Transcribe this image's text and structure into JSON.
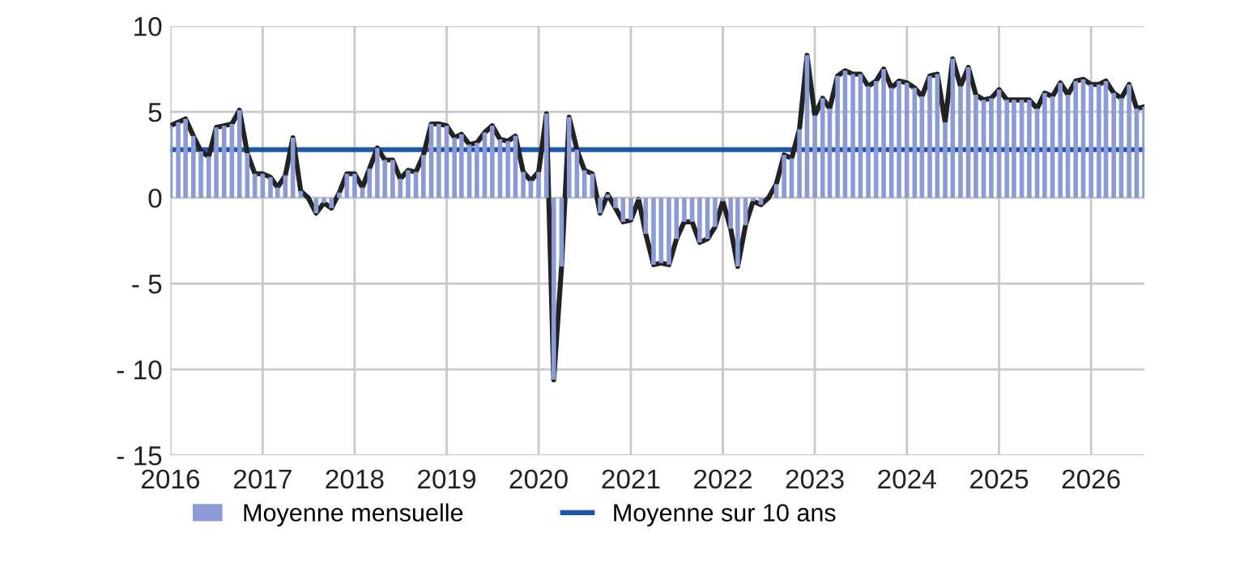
{
  "chart_data": {
    "type": "bar",
    "x": [
      "2016-01",
      "2016-02",
      "2016-03",
      "2016-04",
      "2016-05",
      "2016-06",
      "2016-07",
      "2016-08",
      "2016-09",
      "2016-10",
      "2016-11",
      "2016-12",
      "2017-01",
      "2017-02",
      "2017-03",
      "2017-04",
      "2017-05",
      "2017-06",
      "2017-07",
      "2017-08",
      "2017-09",
      "2017-10",
      "2017-11",
      "2017-12",
      "2018-01",
      "2018-02",
      "2018-03",
      "2018-04",
      "2018-05",
      "2018-06",
      "2018-07",
      "2018-08",
      "2018-09",
      "2018-10",
      "2018-11",
      "2018-12",
      "2019-01",
      "2019-02",
      "2019-03",
      "2019-04",
      "2019-05",
      "2019-06",
      "2019-07",
      "2019-08",
      "2019-09",
      "2019-10",
      "2019-11",
      "2019-12",
      "2020-01",
      "2020-02",
      "2020-03",
      "2020-04",
      "2020-05",
      "2020-06",
      "2020-07",
      "2020-08",
      "2020-09",
      "2020-10",
      "2020-11",
      "2020-12",
      "2021-01",
      "2021-02",
      "2021-03",
      "2021-04",
      "2021-05",
      "2021-06",
      "2021-07",
      "2021-08",
      "2021-09",
      "2021-10",
      "2021-11",
      "2021-12",
      "2022-01",
      "2022-02",
      "2022-03",
      "2022-04",
      "2022-05",
      "2022-06",
      "2022-07",
      "2022-08",
      "2022-09",
      "2022-10",
      "2022-11",
      "2022-12",
      "2023-01",
      "2023-02",
      "2023-03",
      "2023-04",
      "2023-05",
      "2023-06",
      "2023-07",
      "2023-08",
      "2023-09",
      "2023-10",
      "2023-11",
      "2023-12",
      "2024-01",
      "2024-02",
      "2024-03",
      "2024-04",
      "2024-05",
      "2024-06",
      "2024-07",
      "2024-08",
      "2024-09",
      "2024-10",
      "2024-11",
      "2024-12",
      "2025-01",
      "2025-02",
      "2025-03",
      "2025-04",
      "2025-05",
      "2025-06",
      "2025-07",
      "2025-08",
      "2025-09",
      "2025-10",
      "2025-11",
      "2025-12",
      "2026-01",
      "2026-02",
      "2026-03",
      "2026-04",
      "2026-05",
      "2026-06",
      "2026-07",
      "2026-08"
    ],
    "series": [
      {
        "name": "Moyenne mensuelle",
        "color": "#8c9ad6",
        "values": [
          4.2,
          4.4,
          4.6,
          3.6,
          2.7,
          2.4,
          4.1,
          4.2,
          4.3,
          5.1,
          2.6,
          1.4,
          1.4,
          1.2,
          0.6,
          1.3,
          3.5,
          0.4,
          0,
          -0.9,
          -0.3,
          -0.6,
          0.3,
          1.4,
          1.4,
          0.6,
          1.7,
          2.9,
          2.2,
          2.2,
          1.1,
          1.6,
          1.5,
          2.5,
          4.3,
          4.3,
          4.2,
          3.5,
          3.7,
          3.1,
          3.2,
          3.8,
          4.2,
          3.4,
          3.3,
          3.6,
          1.5,
          1.0,
          1.5,
          4.9,
          -10.6,
          -4,
          4.7,
          2.8,
          1.6,
          1.4,
          -0.9,
          0.2,
          -0.6,
          -1.4,
          -1.3,
          -0.1,
          -2.1,
          -3.9,
          -3.8,
          -3.9,
          -2.4,
          -1.4,
          -1.4,
          -2.6,
          -2.4,
          -1.7,
          -0.2,
          -1.8,
          -4.0,
          -1.6,
          -0.2,
          -0.4,
          0,
          0.8,
          2.5,
          2.3,
          4.0,
          8.3,
          4.8,
          5.8,
          5.2,
          7.1,
          7.4,
          7.2,
          7.2,
          6.5,
          6.8,
          7.5,
          6.4,
          6.8,
          6.7,
          6.4,
          5.9,
          7.1,
          7.2,
          4.4,
          8.1,
          6.5,
          7.6,
          6.0,
          5.7,
          5.8,
          6.3,
          5.7,
          5.7,
          5.7,
          5.7,
          5.2,
          6.1,
          5.9,
          6.7,
          6.0,
          6.8,
          6.9,
          6.6,
          6.6,
          6.8,
          6.1,
          5.8,
          6.6,
          5.2,
          5.3
        ]
      },
      {
        "type": "line",
        "color": "#222222",
        "values": [
          4.2,
          4.4,
          4.6,
          3.6,
          2.7,
          2.4,
          4.1,
          4.2,
          4.3,
          5.1,
          2.6,
          1.4,
          1.4,
          1.2,
          0.6,
          1.3,
          3.5,
          0.4,
          0,
          -0.9,
          -0.3,
          -0.6,
          0.3,
          1.4,
          1.4,
          0.6,
          1.7,
          2.9,
          2.2,
          2.2,
          1.1,
          1.6,
          1.5,
          2.5,
          4.3,
          4.3,
          4.2,
          3.5,
          3.7,
          3.1,
          3.2,
          3.8,
          4.2,
          3.4,
          3.3,
          3.6,
          1.5,
          1.0,
          1.5,
          4.9,
          -10.6,
          -4,
          4.7,
          2.8,
          1.6,
          1.4,
          -0.9,
          0.2,
          -0.6,
          -1.4,
          -1.3,
          -0.1,
          -2.1,
          -3.9,
          -3.8,
          -3.9,
          -2.4,
          -1.4,
          -1.4,
          -2.6,
          -2.4,
          -1.7,
          -0.2,
          -1.8,
          -4.0,
          -1.6,
          -0.2,
          -0.4,
          0,
          0.8,
          2.5,
          2.3,
          4.0,
          8.3,
          4.8,
          5.8,
          5.2,
          7.1,
          7.4,
          7.2,
          7.2,
          6.5,
          6.8,
          7.5,
          6.4,
          6.8,
          6.7,
          6.4,
          5.9,
          7.1,
          7.2,
          4.4,
          8.1,
          6.5,
          7.6,
          6.0,
          5.7,
          5.8,
          6.3,
          5.7,
          5.7,
          5.7,
          5.7,
          5.2,
          6.1,
          5.9,
          6.7,
          6.0,
          6.8,
          6.9,
          6.6,
          6.6,
          6.8,
          6.1,
          5.8,
          6.6,
          5.2,
          5.3
        ]
      }
    ],
    "ref_lines": [
      {
        "axis": "y",
        "value": 2.8,
        "label": "Moyenne sur 10 ans",
        "color": "#1f56a8"
      }
    ],
    "xlim": [
      "2016-01",
      "2026-08"
    ],
    "xticks": [
      {
        "value": "2016-01",
        "label": "2016"
      },
      {
        "value": "2017-01",
        "label": "2017"
      },
      {
        "value": "2018-01",
        "label": "2018"
      },
      {
        "value": "2019-01",
        "label": "2019"
      },
      {
        "value": "2020-01",
        "label": "2020"
      },
      {
        "value": "2021-01",
        "label": "2021"
      },
      {
        "value": "2022-01",
        "label": "2022"
      },
      {
        "value": "2023-01",
        "label": "2023"
      },
      {
        "value": "2024-01",
        "label": "2024"
      },
      {
        "value": "2025-01",
        "label": "2025"
      },
      {
        "value": "2026-01",
        "label": "2026"
      }
    ],
    "ylim": [
      -15,
      10
    ],
    "yticks": [
      {
        "value": -15,
        "label": "- 15"
      },
      {
        "value": -10,
        "label": "- 10"
      },
      {
        "value": -5,
        "label": "- 5"
      },
      0,
      5,
      10
    ],
    "grid": true,
    "legend": "bottom"
  }
}
